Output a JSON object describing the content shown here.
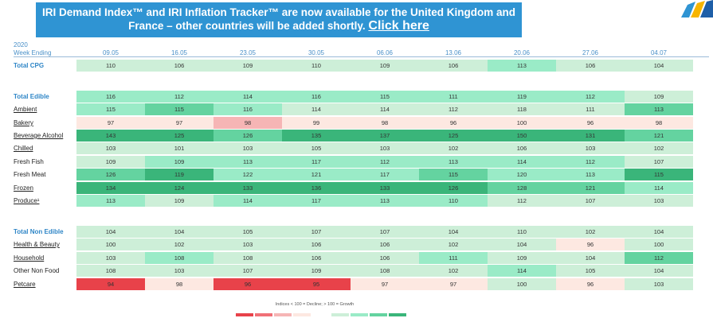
{
  "banner": {
    "line1": "IRI Demand Index™ and IRI Inflation Tracker™ are now available for the United Kingdom and",
    "line2": "France – other countries will be added shortly.",
    "link": "Click here"
  },
  "table": {
    "year": "2020",
    "week_label": "Week Ending",
    "weeks": [
      "09.05",
      "16.05",
      "23.05",
      "30.05",
      "06.06",
      "13.06",
      "20.06",
      "27.06",
      "04.07"
    ],
    "rows": [
      {
        "label": "Total CPG",
        "bold": true,
        "underline": false,
        "values": [
          110,
          106,
          109,
          110,
          109,
          106,
          113,
          106,
          104
        ]
      },
      {
        "label": "Total Edible",
        "bold": true,
        "underline": false,
        "values": [
          116,
          112,
          114,
          116,
          115,
          111,
          119,
          112,
          109
        ]
      },
      {
        "label": "Ambient",
        "bold": false,
        "underline": true,
        "values": [
          115,
          115,
          116,
          114,
          114,
          112,
          118,
          111,
          113
        ]
      },
      {
        "label": "Bakery",
        "bold": false,
        "underline": true,
        "values": [
          97,
          97,
          98,
          99,
          98,
          96,
          100,
          96,
          98
        ]
      },
      {
        "label": "Beverage Alcohol",
        "bold": false,
        "underline": true,
        "values": [
          143,
          125,
          126,
          135,
          137,
          125,
          150,
          131,
          121
        ]
      },
      {
        "label": "Chilled",
        "bold": false,
        "underline": true,
        "values": [
          103,
          101,
          103,
          105,
          103,
          102,
          106,
          103,
          102
        ]
      },
      {
        "label": "Fresh Fish",
        "bold": false,
        "underline": false,
        "values": [
          109,
          109,
          113,
          117,
          112,
          113,
          114,
          112,
          107
        ]
      },
      {
        "label": "Fresh Meat",
        "bold": false,
        "underline": false,
        "values": [
          126,
          119,
          122,
          121,
          117,
          115,
          120,
          113,
          115
        ]
      },
      {
        "label": "Frozen",
        "bold": false,
        "underline": true,
        "values": [
          134,
          124,
          133,
          136,
          133,
          126,
          128,
          121,
          114
        ]
      },
      {
        "label": "Produce¹",
        "bold": false,
        "underline": true,
        "values": [
          113,
          109,
          114,
          117,
          113,
          110,
          112,
          107,
          103
        ]
      },
      {
        "label": "Total Non Edible",
        "bold": true,
        "underline": false,
        "values": [
          104,
          104,
          105,
          107,
          107,
          104,
          110,
          102,
          104
        ]
      },
      {
        "label": "Health & Beauty",
        "bold": false,
        "underline": true,
        "values": [
          100,
          102,
          103,
          106,
          106,
          102,
          104,
          96,
          100
        ]
      },
      {
        "label": "Household",
        "bold": false,
        "underline": true,
        "values": [
          103,
          108,
          108,
          106,
          106,
          111,
          109,
          104,
          112
        ]
      },
      {
        "label": "Other Non Food",
        "bold": false,
        "underline": false,
        "values": [
          108,
          103,
          107,
          109,
          108,
          102,
          114,
          105,
          104
        ]
      },
      {
        "label": "Petcare",
        "bold": false,
        "underline": true,
        "values": [
          94,
          98,
          96,
          95,
          97,
          97,
          100,
          96,
          103
        ]
      }
    ],
    "cell_colors": [
      [
        "#cdefd8",
        "#cdefd8",
        "#cdefd8",
        "#cdefd8",
        "#cdefd8",
        "#cdefd8",
        "#9aebc7",
        "#cdefd8",
        "#cdefd8"
      ],
      [
        "#9aebc7",
        "#9aebc7",
        "#9aebc7",
        "#9aebc7",
        "#9aebc7",
        "#9aebc7",
        "#9aebc7",
        "#9aebc7",
        "#cdefd8"
      ],
      [
        "#9aebc7",
        "#64d3a0",
        "#9aebc7",
        "#cdefd8",
        "#cdefd8",
        "#cdefd8",
        "#cdefd8",
        "#cdefd8",
        "#64d3a0"
      ],
      [
        "#fde8e1",
        "#fde8e1",
        "#f6b5b5",
        "#fde8e1",
        "#fde8e1",
        "#fde8e1",
        "#fde8e1",
        "#fde8e1",
        "#fde8e1"
      ],
      [
        "#3ab57a",
        "#3ab57a",
        "#64d3a0",
        "#3ab57a",
        "#3ab57a",
        "#3ab57a",
        "#3ab57a",
        "#3ab57a",
        "#64d3a0"
      ],
      [
        "#cdefd8",
        "#cdefd8",
        "#cdefd8",
        "#cdefd8",
        "#cdefd8",
        "#cdefd8",
        "#cdefd8",
        "#cdefd8",
        "#cdefd8"
      ],
      [
        "#cdefd8",
        "#9aebc7",
        "#9aebc7",
        "#9aebc7",
        "#9aebc7",
        "#9aebc7",
        "#9aebc7",
        "#9aebc7",
        "#cdefd8"
      ],
      [
        "#64d3a0",
        "#3ab57a",
        "#9aebc7",
        "#9aebc7",
        "#9aebc7",
        "#64d3a0",
        "#9aebc7",
        "#9aebc7",
        "#3ab57a"
      ],
      [
        "#3ab57a",
        "#3ab57a",
        "#3ab57a",
        "#3ab57a",
        "#3ab57a",
        "#3ab57a",
        "#64d3a0",
        "#64d3a0",
        "#9aebc7"
      ],
      [
        "#9aebc7",
        "#cdefd8",
        "#9aebc7",
        "#9aebc7",
        "#9aebc7",
        "#9aebc7",
        "#cdefd8",
        "#cdefd8",
        "#cdefd8"
      ],
      [
        "#cdefd8",
        "#cdefd8",
        "#cdefd8",
        "#cdefd8",
        "#cdefd8",
        "#cdefd8",
        "#cdefd8",
        "#cdefd8",
        "#cdefd8"
      ],
      [
        "#cdefd8",
        "#cdefd8",
        "#cdefd8",
        "#cdefd8",
        "#cdefd8",
        "#cdefd8",
        "#cdefd8",
        "#fde8e1",
        "#cdefd8"
      ],
      [
        "#cdefd8",
        "#9aebc7",
        "#cdefd8",
        "#cdefd8",
        "#cdefd8",
        "#9aebc7",
        "#cdefd8",
        "#cdefd8",
        "#64d3a0"
      ],
      [
        "#cdefd8",
        "#cdefd8",
        "#cdefd8",
        "#cdefd8",
        "#cdefd8",
        "#cdefd8",
        "#9aebc7",
        "#cdefd8",
        "#cdefd8"
      ],
      [
        "#e8424a",
        "#fde8e1",
        "#e8424a",
        "#e8424a",
        "#fde8e1",
        "#fde8e1",
        "#cdefd8",
        "#fde8e1",
        "#cdefd8"
      ]
    ]
  },
  "legend": {
    "text": "Indices < 100 = Decline; > 100 = Growth",
    "colors": [
      "#e8424a",
      "#f07077",
      "#f6b5b5",
      "#fde8e1",
      "#ffffff",
      "#cdefd8",
      "#9aebc7",
      "#64d3a0",
      "#3ab57a"
    ]
  }
}
